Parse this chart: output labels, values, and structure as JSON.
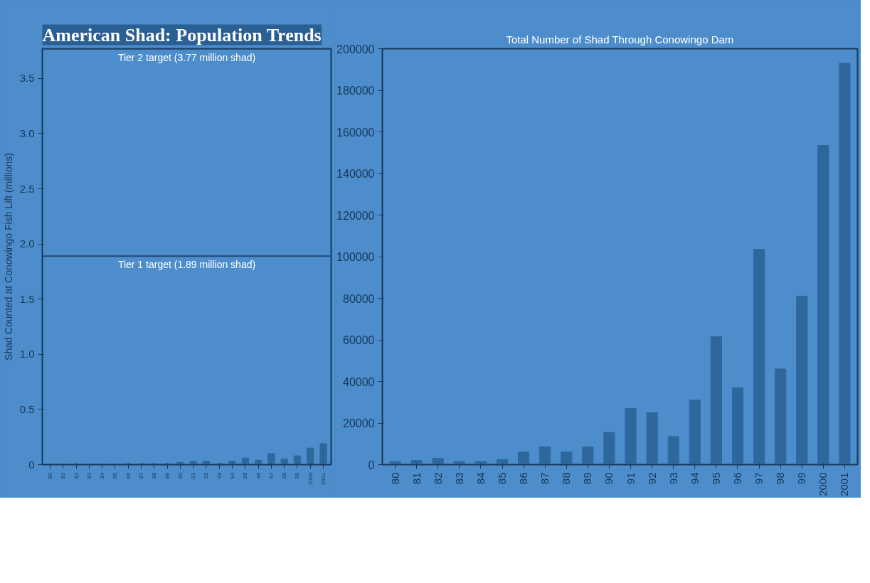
{
  "chart_data": [
    {
      "type": "bar",
      "title": "American Shad: Population Trends",
      "ylabel": "Shad Counted at Conowingo Fish Lift (millions)",
      "categories": [
        "80",
        "81",
        "82",
        "83",
        "84",
        "85",
        "86",
        "87",
        "88",
        "89",
        "90",
        "91",
        "92",
        "93",
        "94",
        "95",
        "96",
        "97",
        "98",
        "99",
        "2000",
        "2001"
      ],
      "values": [
        0.0,
        0.0,
        0.0,
        0.0,
        0.0,
        0.0,
        0.01,
        0.01,
        0.01,
        0.01,
        0.02,
        0.03,
        0.03,
        0.01,
        0.03,
        0.06,
        0.04,
        0.1,
        0.05,
        0.08,
        0.15,
        0.19
      ],
      "color": "#2d679c",
      "ylim": [
        0,
        3.77
      ],
      "yticks": [
        0,
        0.5,
        {
          "value": 1,
          "label": "1.0"
        },
        1.5,
        {
          "value": 2,
          "label": "2.0"
        },
        2.5,
        {
          "value": 3,
          "label": "3.0"
        },
        3.5
      ],
      "ref_lines": [
        {
          "axis": "y",
          "value": 3.77,
          "label": "Tier 2 target (3.77 million shad)",
          "color": "#1d4a78"
        },
        {
          "axis": "y",
          "value": 1.89,
          "label": "Tier 1 target (1.89 million shad)",
          "color": "#1d4a78"
        }
      ],
      "grid": false
    },
    {
      "type": "bar",
      "title": "Total Number of Shad Through Conowingo Dam",
      "categories": [
        "80",
        "81",
        "82",
        "83",
        "84",
        "85",
        "86",
        "87",
        "88",
        "89",
        "90",
        "91",
        "92",
        "93",
        "94",
        "95",
        "96",
        "97",
        "98",
        "99",
        "2000",
        "2001"
      ],
      "values": [
        1500,
        2000,
        3000,
        1500,
        1500,
        2500,
        6000,
        8500,
        6000,
        8500,
        15500,
        27000,
        25000,
        13500,
        31000,
        61500,
        37000,
        103500,
        46000,
        81000,
        153500,
        193000
      ],
      "color": "#2d679c",
      "ylim": [
        0,
        200000
      ],
      "yticks": [
        0,
        20000,
        40000,
        60000,
        80000,
        100000,
        120000,
        140000,
        160000,
        180000,
        200000
      ],
      "grid": false
    }
  ]
}
